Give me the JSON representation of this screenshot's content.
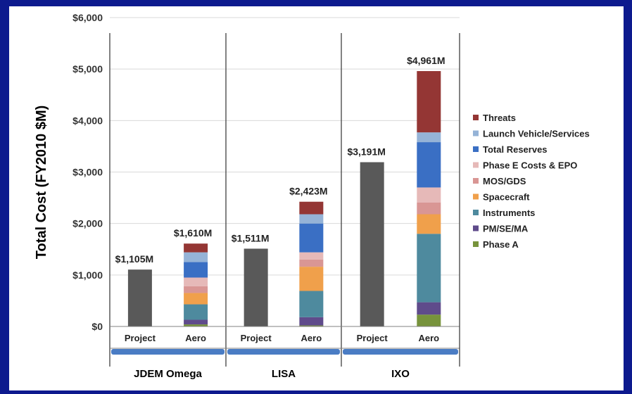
{
  "chart_data": {
    "type": "bar",
    "stacked": true,
    "ylabel": "Total Cost (FY2010 $M)",
    "ylim": [
      0,
      6000
    ],
    "yticks": [
      "$0",
      "$1,000",
      "$2,000",
      "$3,000",
      "$4,000",
      "$5,000",
      "$6,000"
    ],
    "grid": true,
    "legend_position": "right",
    "groups": [
      {
        "name": "JDEM Omega",
        "bars": [
          {
            "label": "Project",
            "total_label": "$1,105M",
            "total": 1105
          },
          {
            "label": "Aero",
            "total_label": "$1,610M",
            "total": 1610,
            "segments": [
              40,
              90,
              0,
              300,
              220,
              130,
              170,
              300,
              190,
              170
            ]
          }
        ]
      },
      {
        "name": "LISA",
        "bars": [
          {
            "label": "Project",
            "total_label": "$1,511M",
            "total": 1511
          },
          {
            "label": "Aero",
            "total_label": "$2,423M",
            "total": 2423,
            "segments": [
              20,
              160,
              0,
              510,
              470,
              140,
              140,
              560,
              180,
              243
            ]
          }
        ]
      },
      {
        "name": "IXO",
        "bars": [
          {
            "label": "Project",
            "total_label": "$3,191M",
            "total": 3191
          },
          {
            "label": "Aero",
            "total_label": "$4,961M",
            "total": 4961,
            "segments": [
              230,
              240,
              0,
              1330,
              380,
              230,
              290,
              880,
              190,
              1191
            ]
          }
        ]
      }
    ],
    "series_order_bottom_to_top": [
      "Phase A",
      "PM/SE/MA",
      "Aero",
      "Instruments",
      "Spacecraft",
      "MOS/GDS",
      "Phase E Costs & EPO",
      "Total Reserves",
      "Launch Vehicle/Services",
      "Threats"
    ],
    "legend": [
      {
        "name": "Threats",
        "color": "#943634"
      },
      {
        "name": "Launch Vehicle/Services",
        "color": "#95b3d7"
      },
      {
        "name": "Total Reserves",
        "color": "#3a6fc4"
      },
      {
        "name": "Phase E Costs & EPO",
        "color": "#e6b9b8"
      },
      {
        "name": "MOS/GDS",
        "color": "#d99694"
      },
      {
        "name": "Spacecraft",
        "color": "#f0a04b"
      },
      {
        "name": "Instruments",
        "color": "#4e8a9e"
      },
      {
        "name": "PM/SE/MA",
        "color": "#5f4b8b"
      },
      {
        "name": "Phase A",
        "color": "#77933c"
      }
    ],
    "colors": {
      "project_bar": "#595959",
      "group_band": "#4a7cc4",
      "background": "#0d1a8e"
    }
  }
}
